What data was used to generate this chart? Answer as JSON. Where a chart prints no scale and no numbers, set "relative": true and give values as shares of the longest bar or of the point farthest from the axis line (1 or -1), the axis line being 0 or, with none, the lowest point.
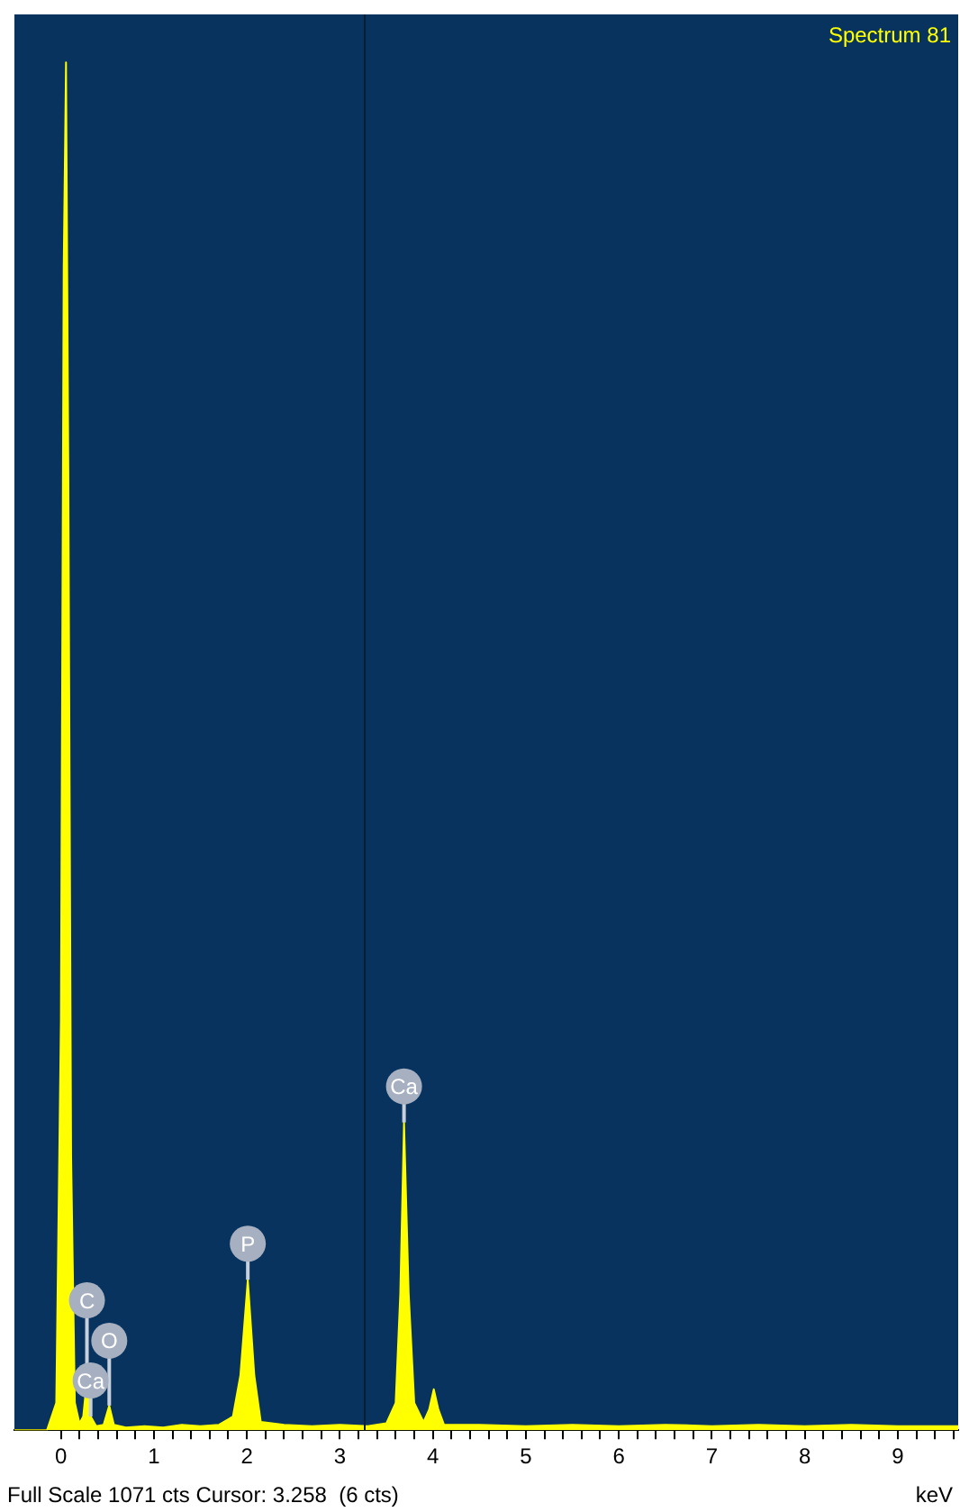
{
  "chart_data": {
    "type": "area",
    "title": "Spectrum 81",
    "xlabel": "keV",
    "relative": true,
    "x": [
      -0.5,
      -0.15,
      -0.05,
      0.0,
      0.03,
      0.055,
      0.08,
      0.11,
      0.15,
      0.2,
      0.24,
      0.28,
      0.32,
      0.38,
      0.46,
      0.52,
      0.57,
      0.7,
      0.9,
      1.1,
      1.3,
      1.5,
      1.7,
      1.85,
      1.93,
      2.01,
      2.08,
      2.15,
      2.4,
      2.7,
      3.0,
      3.3,
      3.5,
      3.6,
      3.65,
      3.69,
      3.74,
      3.8,
      3.9,
      3.96,
      4.01,
      4.06,
      4.12,
      4.5,
      5.0,
      5.5,
      6.0,
      6.5,
      7.0,
      7.5,
      8.0,
      8.5,
      9.0,
      9.65
    ],
    "values": [
      0,
      0,
      0.02,
      0.3,
      0.85,
      1,
      0.7,
      0.2,
      0.02,
      0.005,
      0.01,
      0.037,
      0.01,
      0.003,
      0.004,
      0.018,
      0.004,
      0.002,
      0.003,
      0.002,
      0.004,
      0.003,
      0.004,
      0.01,
      0.04,
      0.11,
      0.04,
      0.006,
      0.004,
      0.003,
      0.004,
      0.003,
      0.005,
      0.02,
      0.1,
      0.225,
      0.1,
      0.02,
      0.006,
      0.015,
      0.03,
      0.015,
      0.004,
      0.004,
      0.003,
      0.004,
      0.003,
      0.004,
      0.003,
      0.004,
      0.003,
      0.004,
      0.003,
      0.003
    ],
    "color": "#ffff00",
    "xlim": [
      -0.5,
      9.65
    ],
    "xticks": [
      0,
      {
        "value": 0.2,
        "label": null
      },
      {
        "value": 0.4,
        "label": null
      },
      {
        "value": 0.6,
        "label": null
      },
      {
        "value": 0.8,
        "label": null
      },
      1,
      {
        "value": 1.2,
        "label": null
      },
      {
        "value": 1.4,
        "label": null
      },
      {
        "value": 1.6,
        "label": null
      },
      {
        "value": 1.8,
        "label": null
      },
      2,
      {
        "value": 2.2,
        "label": null
      },
      {
        "value": 2.4,
        "label": null
      },
      {
        "value": 2.6,
        "label": null
      },
      {
        "value": 2.8,
        "label": null
      },
      3,
      {
        "value": 3.2,
        "label": null
      },
      {
        "value": 3.4,
        "label": null
      },
      {
        "value": 3.6,
        "label": null
      },
      {
        "value": 3.8,
        "label": null
      },
      4,
      {
        "value": 4.2,
        "label": null
      },
      {
        "value": 4.4,
        "label": null
      },
      {
        "value": 4.6,
        "label": null
      },
      {
        "value": 4.8,
        "label": null
      },
      5,
      {
        "value": 5.2,
        "label": null
      },
      {
        "value": 5.4,
        "label": null
      },
      {
        "value": 5.6,
        "label": null
      },
      {
        "value": 5.8,
        "label": null
      },
      6,
      {
        "value": 6.2,
        "label": null
      },
      {
        "value": 6.4,
        "label": null
      },
      {
        "value": 6.6,
        "label": null
      },
      {
        "value": 6.8,
        "label": null
      },
      7,
      {
        "value": 7.2,
        "label": null
      },
      {
        "value": 7.4,
        "label": null
      },
      {
        "value": 7.6,
        "label": null
      },
      {
        "value": 7.8,
        "label": null
      },
      8,
      {
        "value": 8.2,
        "label": null
      },
      {
        "value": 8.4,
        "label": null
      },
      {
        "value": 8.6,
        "label": null
      },
      {
        "value": 8.8,
        "label": null
      },
      9,
      {
        "value": 9.2,
        "label": null
      },
      {
        "value": 9.4,
        "label": null
      },
      {
        "value": 9.6,
        "label": null
      }
    ],
    "ref_lines": [
      {
        "axis": "x",
        "value": 3.258,
        "color": "#0a1e33"
      }
    ],
    "annotations": [
      {
        "text": "C",
        "x": 0.28,
        "y": 0.037
      },
      {
        "text": "O",
        "x": 0.52,
        "y": 0.018
      },
      {
        "text": "Ca",
        "x": 0.32,
        "y": 0.01
      },
      {
        "text": "P",
        "x": 2.01,
        "y": 0.11
      },
      {
        "text": "Ca",
        "x": 3.69,
        "y": 0.225
      },
      "Full Scale 1071 cts Cursor: 3.258  (6 cts)"
    ],
    "grid": false,
    "legend": false
  }
}
